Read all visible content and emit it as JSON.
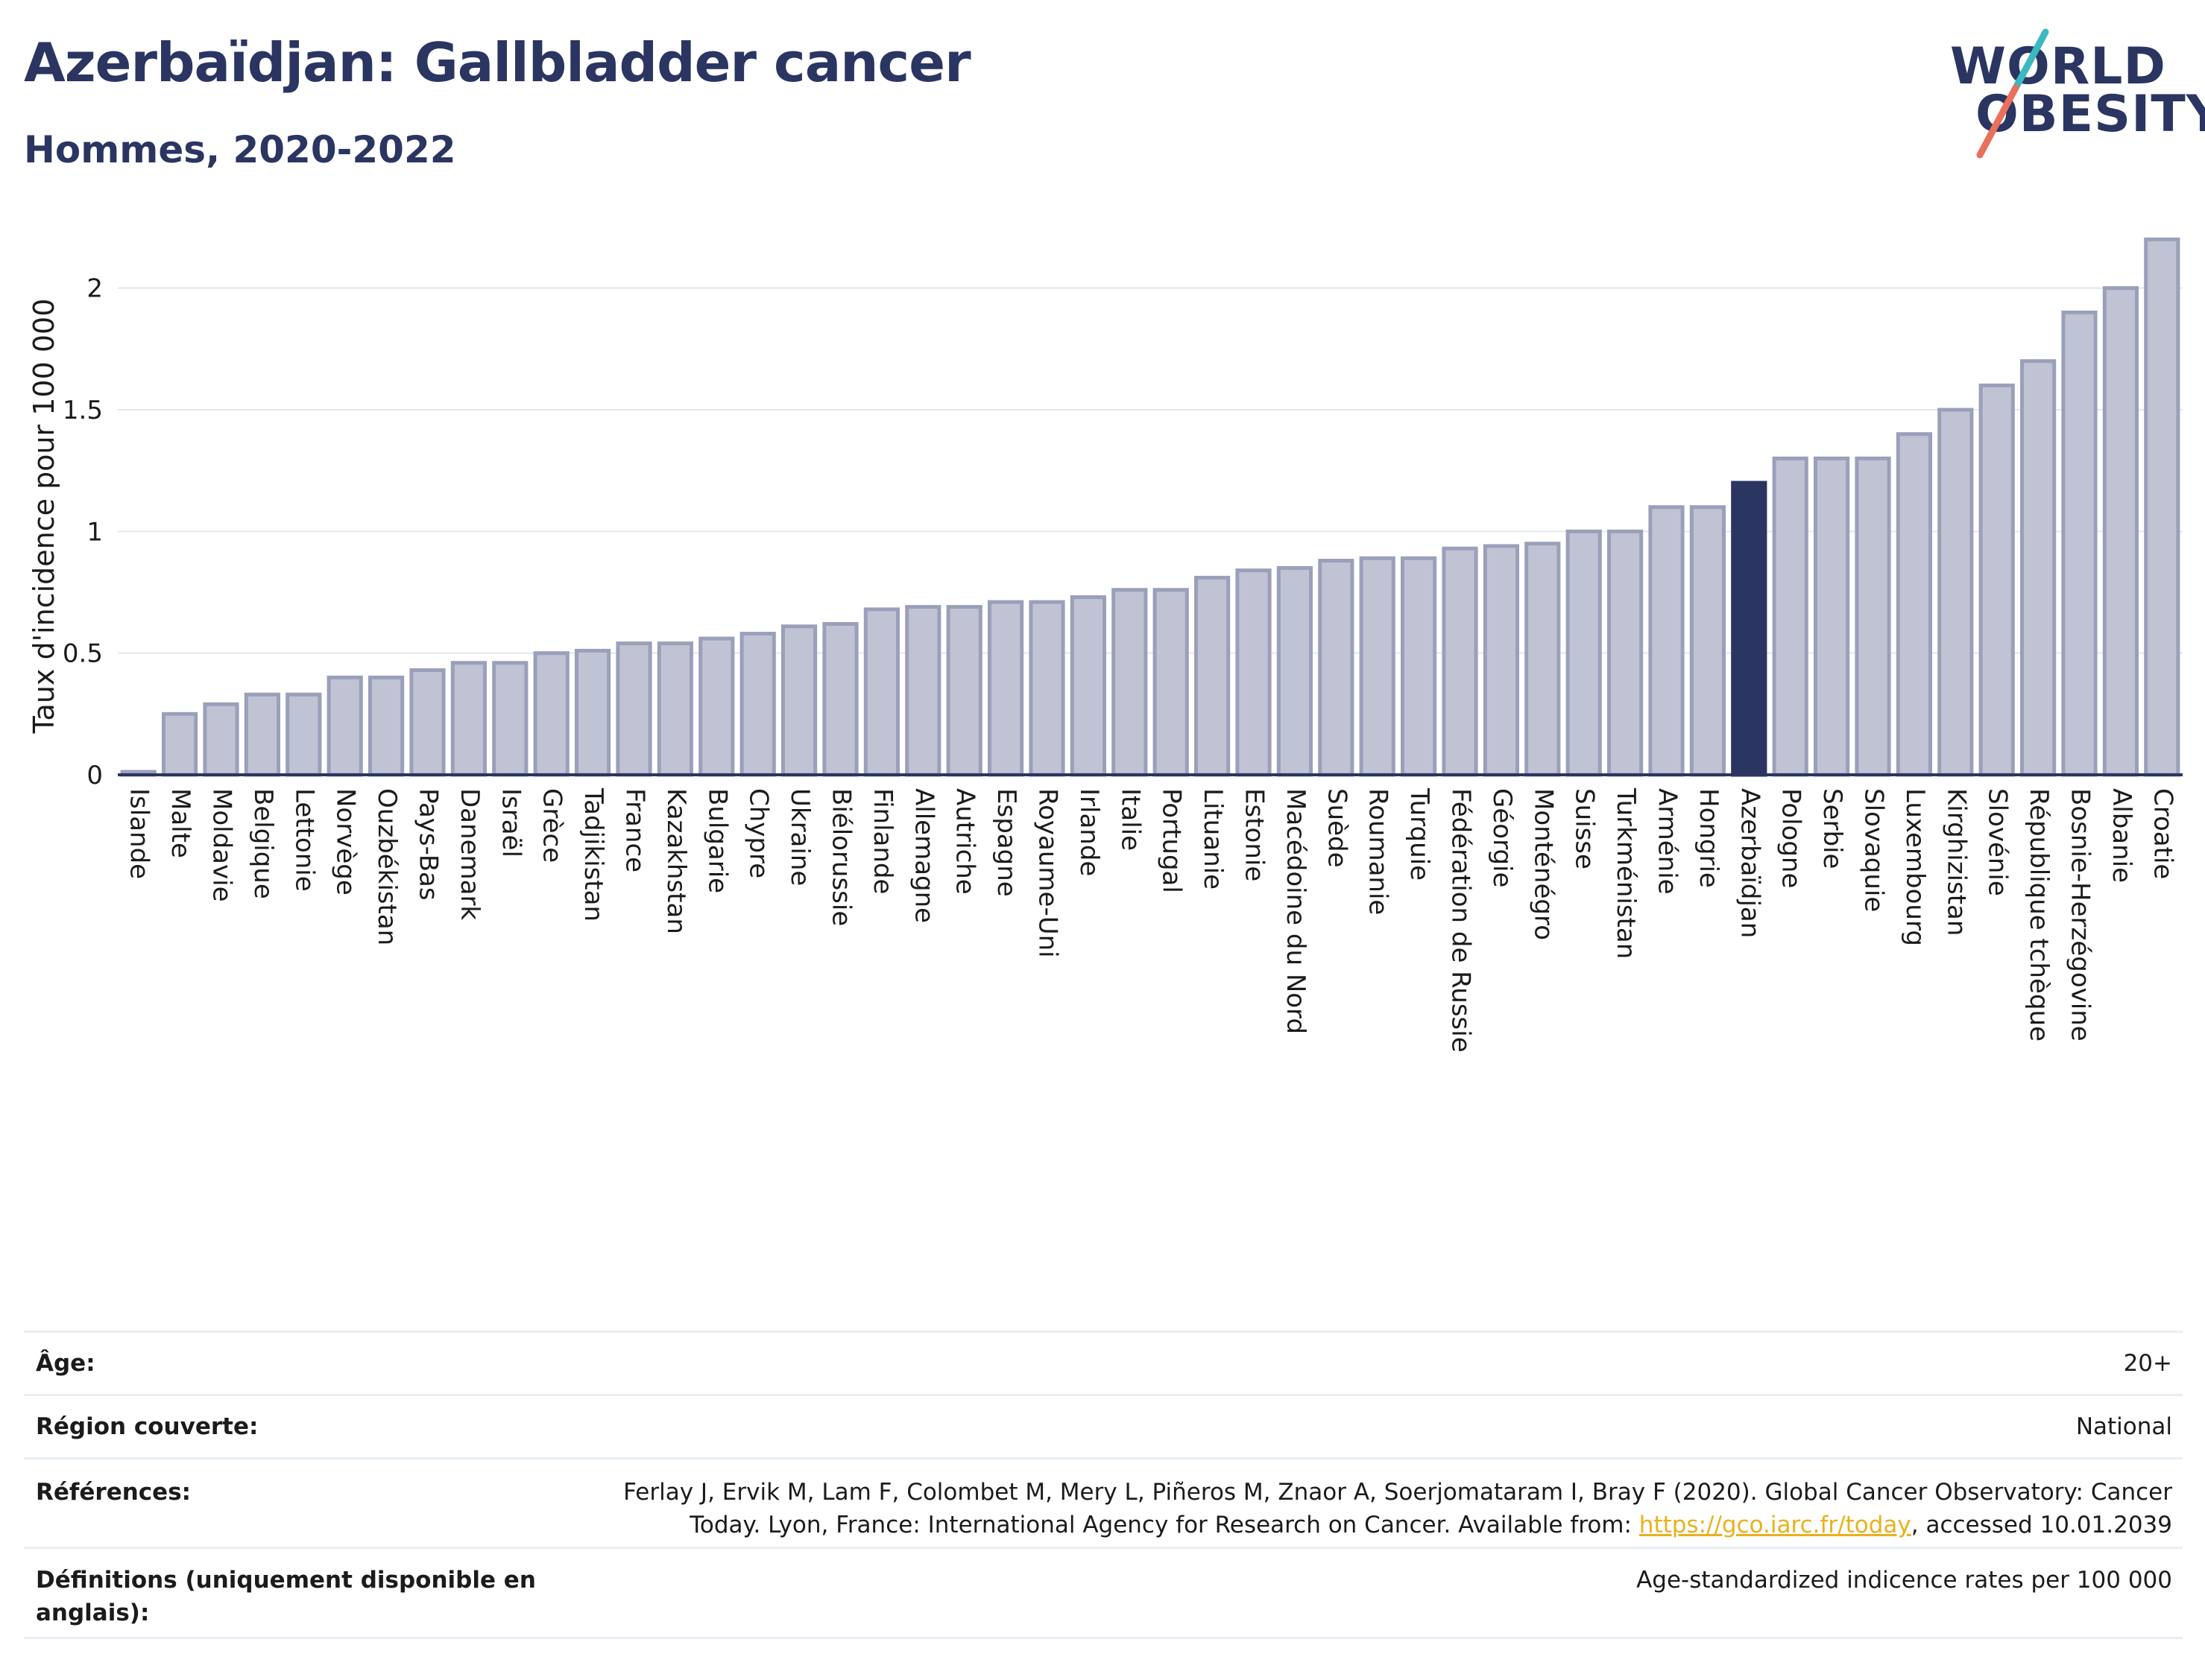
{
  "header": {
    "title": "Azerbaïdjan: Gallbladder cancer",
    "subtitle": "Hommes, 2020-2022"
  },
  "logo": {
    "line1": "WORLD",
    "line2": "OBESITY",
    "colors": {
      "text": "#2a3561",
      "slash_top": "#3bb9c0",
      "slash_bottom": "#e8705c"
    }
  },
  "chart_data": {
    "type": "bar",
    "ylabel": "Taux d'incidence pour 100 000",
    "ylim": [
      0,
      2.25
    ],
    "yticks": [
      0,
      0.5,
      1,
      1.5,
      2
    ],
    "ytick_labels": [
      "0",
      "0.5",
      "1",
      "1.5",
      "2"
    ],
    "grid": true,
    "highlight": "Azerbaïdjan",
    "colors": {
      "bar": "#bfc3d3",
      "bar_edge": "#9aa0ba",
      "highlight": "#2a3561"
    },
    "categories": [
      "Islande",
      "Malte",
      "Moldavie",
      "Belgique",
      "Lettonie",
      "Norvège",
      "Ouzbékistan",
      "Pays-Bas",
      "Danemark",
      "Israël",
      "Grèce",
      "Tadjikistan",
      "France",
      "Kazakhstan",
      "Bulgarie",
      "Chypre",
      "Ukraine",
      "Biélorussie",
      "Finlande",
      "Allemagne",
      "Autriche",
      "Espagne",
      "Royaume-Uni",
      "Irlande",
      "Italie",
      "Portugal",
      "Lituanie",
      "Estonie",
      "Macédoine du Nord",
      "Suède",
      "Roumanie",
      "Turquie",
      "Fédération de Russie",
      "Géorgie",
      "Monténégro",
      "Suisse",
      "Turkménistan",
      "Arménie",
      "Hongrie",
      "Azerbaïdjan",
      "Pologne",
      "Serbie",
      "Slovaquie",
      "Luxembourg",
      "Kirghizistan",
      "Slovénie",
      "République tchèque",
      "Bosnie-Herzégovine",
      "Albanie",
      "Croatie"
    ],
    "values": [
      0.01,
      0.25,
      0.29,
      0.33,
      0.33,
      0.4,
      0.4,
      0.43,
      0.46,
      0.46,
      0.5,
      0.51,
      0.54,
      0.54,
      0.56,
      0.58,
      0.61,
      0.62,
      0.68,
      0.69,
      0.69,
      0.71,
      0.71,
      0.73,
      0.76,
      0.76,
      0.81,
      0.84,
      0.85,
      0.88,
      0.89,
      0.89,
      0.93,
      0.94,
      0.95,
      1.0,
      1.0,
      1.1,
      1.1,
      1.2,
      1.3,
      1.3,
      1.3,
      1.4,
      1.5,
      1.6,
      1.7,
      1.9,
      2.0,
      2.2
    ]
  },
  "meta": {
    "age_label": "Âge:",
    "age_value": "20+",
    "region_label": "Région couverte:",
    "region_value": "National",
    "refs_label": "Références:",
    "refs_text_1": "Ferlay J, Ervik M, Lam F, Colombet M, Mery L, Piñeros M, Znaor A, Soerjomataram I, Bray F (2020). Global Cancer Observatory: Cancer Today. Lyon, France: International Agency for Research on Cancer. Available from: ",
    "refs_link": "https://gco.iarc.fr/today",
    "refs_text_2": ", accessed 10.01.2039",
    "defs_label": "Définitions (uniquement disponible en anglais):",
    "defs_value": "Age-standardized indicence rates per 100 000"
  }
}
